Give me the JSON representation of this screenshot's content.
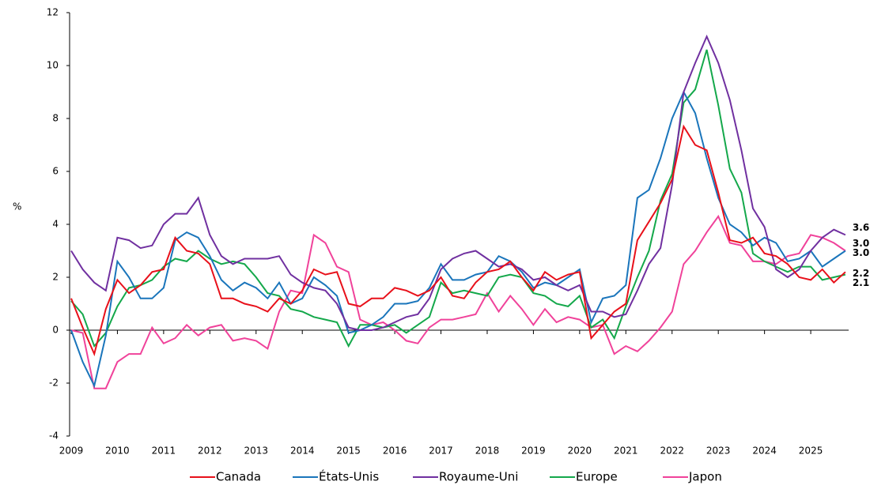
{
  "chart_data": {
    "type": "line",
    "ylabel": "%",
    "x": [
      2009,
      2009.25,
      2009.5,
      2009.75,
      2010,
      2010.25,
      2010.5,
      2010.75,
      2011,
      2011.25,
      2011.5,
      2011.75,
      2012,
      2012.25,
      2012.5,
      2012.75,
      2013,
      2013.25,
      2013.5,
      2013.75,
      2014,
      2014.25,
      2014.5,
      2014.75,
      2015,
      2015.25,
      2015.5,
      2015.75,
      2016,
      2016.25,
      2016.5,
      2016.75,
      2017,
      2017.25,
      2017.5,
      2017.75,
      2018,
      2018.25,
      2018.5,
      2018.75,
      2019,
      2019.25,
      2019.5,
      2019.75,
      2020,
      2020.25,
      2020.5,
      2020.75,
      2021,
      2021.25,
      2021.5,
      2021.75,
      2022,
      2022.25,
      2022.5,
      2022.75,
      2023,
      2023.25,
      2023.5,
      2023.75,
      2024,
      2024.25,
      2024.5,
      2024.75,
      2025,
      2025.25,
      2025.5,
      2025.75
    ],
    "series": [
      {
        "name": "Canada",
        "color": "#e8101a",
        "values": [
          1.2,
          0.1,
          -0.9,
          0.8,
          1.9,
          1.4,
          1.7,
          2.2,
          2.3,
          3.5,
          3.0,
          2.9,
          2.5,
          1.2,
          1.2,
          1.0,
          0.9,
          0.7,
          1.2,
          1.0,
          1.5,
          2.3,
          2.1,
          2.2,
          1.0,
          0.9,
          1.2,
          1.2,
          1.6,
          1.5,
          1.3,
          1.5,
          2.0,
          1.3,
          1.2,
          1.8,
          2.2,
          2.3,
          2.6,
          2.0,
          1.5,
          2.2,
          1.9,
          2.1,
          2.2,
          -0.3,
          0.2,
          0.7,
          1.0,
          3.4,
          4.1,
          4.8,
          5.7,
          7.7,
          7.0,
          6.8,
          5.2,
          3.4,
          3.3,
          3.5,
          2.9,
          2.8,
          2.5,
          2.0,
          1.9,
          2.3,
          1.8,
          2.2
        ],
        "value_labels": [
          "2.2"
        ]
      },
      {
        "name": "États-Unis",
        "color": "#1a75bb",
        "values": [
          0.0,
          -1.2,
          -2.1,
          -0.2,
          2.6,
          2.0,
          1.2,
          1.2,
          1.6,
          3.4,
          3.7,
          3.5,
          2.8,
          1.9,
          1.5,
          1.8,
          1.6,
          1.2,
          1.8,
          1.0,
          1.2,
          2.0,
          1.7,
          1.3,
          -0.1,
          0.0,
          0.2,
          0.5,
          1.0,
          1.0,
          1.1,
          1.6,
          2.5,
          1.9,
          1.9,
          2.1,
          2.2,
          2.8,
          2.6,
          2.2,
          1.6,
          1.8,
          1.7,
          2.0,
          2.3,
          0.3,
          1.2,
          1.3,
          1.7,
          5.0,
          5.3,
          6.5,
          8.0,
          9.0,
          8.2,
          6.5,
          5.0,
          4.0,
          3.7,
          3.2,
          3.5,
          3.3,
          2.6,
          2.7,
          3.0,
          2.4,
          2.7,
          3.0
        ],
        "value_labels": [
          "3.0"
        ]
      },
      {
        "name": "Royaume-Uni",
        "color": "#7030a0",
        "values": [
          3.0,
          2.3,
          1.8,
          1.5,
          3.5,
          3.4,
          3.1,
          3.2,
          4.0,
          4.4,
          4.4,
          5.0,
          3.6,
          2.8,
          2.5,
          2.7,
          2.7,
          2.7,
          2.8,
          2.1,
          1.8,
          1.6,
          1.5,
          1.0,
          0.1,
          0.0,
          0.0,
          0.1,
          0.3,
          0.5,
          0.6,
          1.2,
          2.3,
          2.7,
          2.9,
          3.0,
          2.7,
          2.4,
          2.5,
          2.3,
          1.9,
          2.0,
          1.7,
          1.5,
          1.7,
          0.7,
          0.7,
          0.5,
          0.6,
          1.5,
          2.5,
          3.1,
          5.5,
          9.0,
          10.1,
          11.1,
          10.1,
          8.7,
          6.8,
          4.6,
          3.9,
          2.3,
          2.0,
          2.3,
          3.0,
          3.5,
          3.8,
          3.6
        ],
        "value_labels": [
          "3.6"
        ]
      },
      {
        "name": "Europe",
        "color": "#14a84b",
        "values": [
          1.1,
          0.6,
          -0.6,
          -0.1,
          0.9,
          1.6,
          1.7,
          1.9,
          2.4,
          2.7,
          2.6,
          3.0,
          2.7,
          2.5,
          2.6,
          2.5,
          2.0,
          1.4,
          1.3,
          0.8,
          0.7,
          0.5,
          0.4,
          0.3,
          -0.6,
          0.2,
          0.2,
          0.1,
          0.2,
          -0.1,
          0.2,
          0.5,
          1.8,
          1.4,
          1.5,
          1.4,
          1.3,
          2.0,
          2.1,
          2.0,
          1.4,
          1.3,
          1.0,
          0.9,
          1.3,
          0.1,
          0.4,
          -0.3,
          0.9,
          2.0,
          3.0,
          4.9,
          5.9,
          8.6,
          9.1,
          10.6,
          8.5,
          6.1,
          5.2,
          2.9,
          2.6,
          2.4,
          2.2,
          2.4,
          2.4,
          1.9,
          2.0,
          2.1
        ],
        "value_labels": [
          "2.1"
        ]
      },
      {
        "name": "Japon",
        "color": "#f0429a",
        "values": [
          0.0,
          -0.1,
          -2.2,
          -2.2,
          -1.2,
          -0.9,
          -0.9,
          0.1,
          -0.5,
          -0.3,
          0.2,
          -0.2,
          0.1,
          0.2,
          -0.4,
          -0.3,
          -0.4,
          -0.7,
          0.7,
          1.5,
          1.4,
          3.6,
          3.3,
          2.4,
          2.2,
          0.4,
          0.2,
          0.3,
          0.0,
          -0.4,
          -0.5,
          0.1,
          0.4,
          0.4,
          0.5,
          0.6,
          1.4,
          0.7,
          1.3,
          0.8,
          0.2,
          0.8,
          0.3,
          0.5,
          0.4,
          0.1,
          0.2,
          -0.9,
          -0.6,
          -0.8,
          -0.4,
          0.1,
          0.7,
          2.5,
          3.0,
          3.7,
          4.3,
          3.3,
          3.2,
          2.6,
          2.6,
          2.5,
          2.8,
          2.9,
          3.6,
          3.5,
          3.3,
          3.0
        ],
        "value_labels": [
          "3.0"
        ]
      }
    ],
    "xlim": [
      2009,
      2025.82
    ],
    "xticks": [
      2009,
      2010,
      2011,
      2012,
      2013,
      2014,
      2015,
      2016,
      2017,
      2018,
      2019,
      2020,
      2021,
      2022,
      2023,
      2024,
      2025
    ],
    "ylim": [
      -4,
      12
    ],
    "yticks": [
      -4,
      -2,
      0,
      2,
      4,
      6,
      8,
      10,
      12
    ],
    "legend": "bottom"
  }
}
